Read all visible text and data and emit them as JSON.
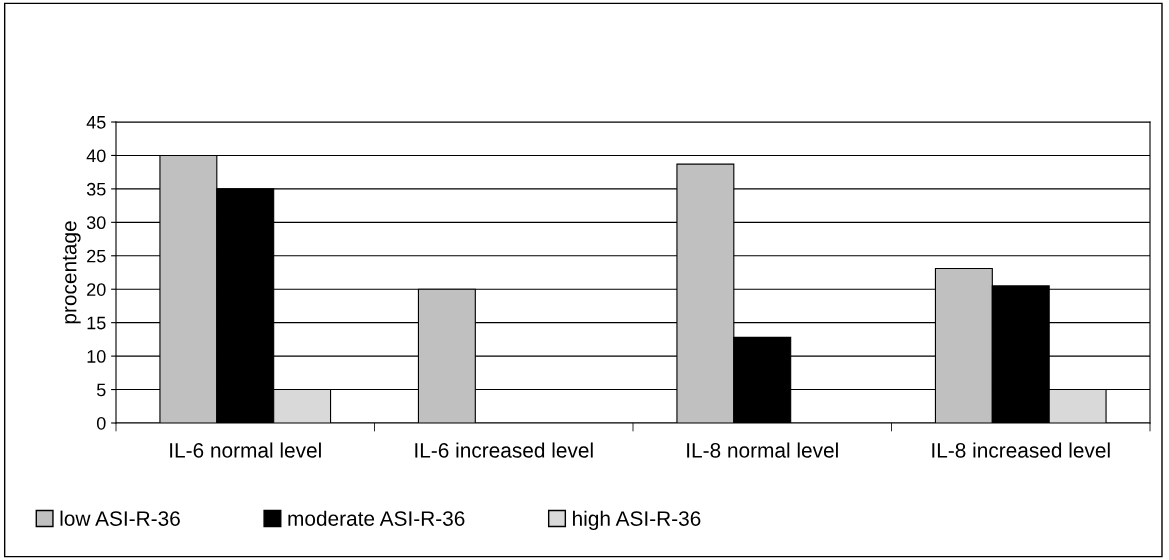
{
  "chart_data": {
    "type": "bar",
    "ylabel": "procentage",
    "categories": [
      "IL-6 normal level",
      "IL-6 increased level",
      "IL-8 normal level",
      "IL-8 increased level"
    ],
    "series": [
      {
        "name": "low ASI-R-36",
        "color": "#c0c0c0",
        "values": [
          40,
          20,
          38.7,
          23.1
        ]
      },
      {
        "name": "moderate ASI-R-36",
        "color": "#000000",
        "values": [
          35,
          null,
          12.8,
          20.5
        ]
      },
      {
        "name": "high ASI-R-36",
        "color": "#d9d9d9",
        "values": [
          5,
          null,
          null,
          5
        ]
      }
    ],
    "ylim": [
      0,
      45
    ],
    "yticks": [
      0,
      5,
      10,
      15,
      20,
      25,
      30,
      35,
      40,
      45
    ],
    "grid": "y",
    "legend": "bottom"
  }
}
